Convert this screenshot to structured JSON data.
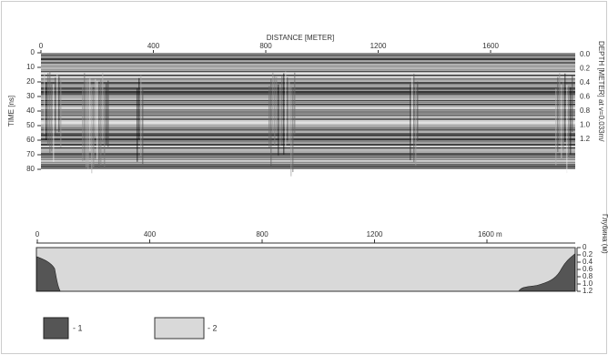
{
  "top_panel": {
    "x_axis_title": "DISTANCE [METER]",
    "x_ticks": [
      "0",
      "400",
      "800",
      "1200",
      "1600"
    ],
    "left_axis_title": "TIME [ns]",
    "left_ticks": [
      "0",
      "10",
      "20",
      "30",
      "40",
      "50",
      "60",
      "70",
      "80"
    ],
    "right_axis_title": "DEPTH [METER] at v=0.033m/",
    "right_ticks": [
      "0.0",
      "0.2",
      "0.4",
      "0.6",
      "0.8",
      "1.0",
      "1.2"
    ]
  },
  "bottom_panel": {
    "x_ticks": [
      "0",
      "400",
      "800",
      "1200",
      "1600 m"
    ],
    "right_ticks": [
      "0",
      "0.2",
      "0.4",
      "0.6",
      "0.8",
      "1.0",
      "1.2"
    ],
    "right_axis_title": "Глубина (м)"
  },
  "legend": [
    {
      "label": "- 1"
    },
    {
      "label": "- 2"
    }
  ]
}
